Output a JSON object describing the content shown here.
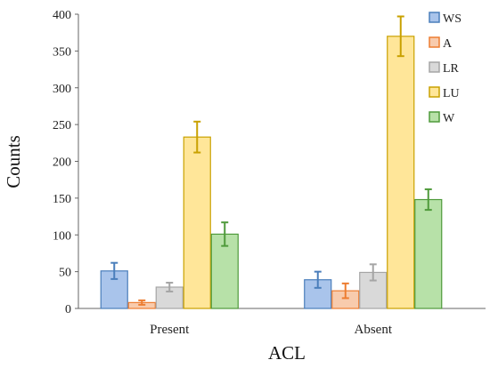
{
  "chart_data": {
    "type": "bar",
    "title": "",
    "xlabel": "ACL",
    "ylabel": "Counts",
    "ylim": [
      0,
      400
    ],
    "yticks": [
      0,
      50,
      100,
      150,
      200,
      250,
      300,
      350,
      400
    ],
    "categories": [
      "Present",
      "Absent"
    ],
    "grid": false,
    "legend_position": "top-right",
    "series": [
      {
        "name": "WS",
        "values": [
          51,
          39
        ],
        "errors": [
          11,
          11
        ],
        "fill": "#a9c4eb",
        "edge": "#4a7ebb"
      },
      {
        "name": "A",
        "values": [
          8,
          24
        ],
        "errors": [
          3,
          10
        ],
        "fill": "#f8cbad",
        "edge": "#ed7d31"
      },
      {
        "name": "LR",
        "values": [
          29,
          49
        ],
        "errors": [
          6,
          11
        ],
        "fill": "#d9d9d9",
        "edge": "#a5a5a5"
      },
      {
        "name": "LU",
        "values": [
          233,
          370
        ],
        "errors": [
          21,
          27
        ],
        "fill": "#ffe699",
        "edge": "#c9a100"
      },
      {
        "name": "W",
        "values": [
          101,
          148
        ],
        "errors": [
          16,
          14
        ],
        "fill": "#b7e1a8",
        "edge": "#4f9a3b"
      }
    ]
  }
}
